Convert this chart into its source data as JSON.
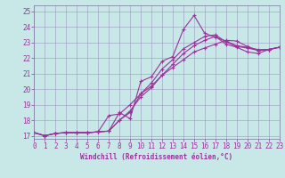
{
  "xlabel": "Windchill (Refroidissement éolien,°C)",
  "bg_color": "#c8e8e8",
  "grid_color": "#9999bb",
  "line_color": "#993399",
  "xlim": [
    0,
    23
  ],
  "ylim": [
    16.8,
    25.4
  ],
  "xticks": [
    0,
    1,
    2,
    3,
    4,
    5,
    6,
    7,
    8,
    9,
    10,
    11,
    12,
    13,
    14,
    15,
    16,
    17,
    18,
    19,
    20,
    21,
    22,
    23
  ],
  "yticks": [
    17,
    18,
    19,
    20,
    21,
    22,
    23,
    24,
    25
  ],
  "lines": [
    {
      "x": [
        0,
        1,
        2,
        3,
        4,
        5,
        6,
        7,
        8,
        9,
        10,
        11,
        12,
        13,
        14,
        15,
        16,
        17,
        18,
        19,
        20,
        21,
        22,
        23
      ],
      "y": [
        17.2,
        17.0,
        17.15,
        17.2,
        17.2,
        17.2,
        17.25,
        17.3,
        18.5,
        18.1,
        20.5,
        20.8,
        21.8,
        22.1,
        23.85,
        24.75,
        23.6,
        23.35,
        23.1,
        22.8,
        22.7,
        22.55,
        22.55,
        22.7
      ]
    },
    {
      "x": [
        0,
        1,
        2,
        3,
        4,
        5,
        6,
        7,
        8,
        9,
        10,
        11,
        12,
        13,
        14,
        15,
        16,
        17,
        18,
        19,
        20,
        21,
        22,
        23
      ],
      "y": [
        17.2,
        17.0,
        17.15,
        17.2,
        17.2,
        17.2,
        17.25,
        17.3,
        18.0,
        18.5,
        19.7,
        20.4,
        21.3,
        21.9,
        22.6,
        23.0,
        23.4,
        23.5,
        23.05,
        22.75,
        22.65,
        22.5,
        22.55,
        22.7
      ]
    },
    {
      "x": [
        0,
        1,
        2,
        3,
        4,
        5,
        6,
        7,
        8,
        9,
        10,
        11,
        12,
        13,
        14,
        15,
        16,
        17,
        18,
        19,
        20,
        21,
        22,
        23
      ],
      "y": [
        17.2,
        17.0,
        17.15,
        17.2,
        17.2,
        17.2,
        17.25,
        18.3,
        18.4,
        19.0,
        19.7,
        20.2,
        20.9,
        21.4,
        21.9,
        22.4,
        22.65,
        22.9,
        23.15,
        23.1,
        22.75,
        22.5,
        22.55,
        22.7
      ]
    },
    {
      "x": [
        0,
        1,
        2,
        3,
        4,
        5,
        6,
        7,
        8,
        9,
        10,
        11,
        12,
        13,
        14,
        15,
        16,
        17,
        18,
        19,
        20,
        21,
        22,
        23
      ],
      "y": [
        17.2,
        17.0,
        17.15,
        17.2,
        17.2,
        17.2,
        17.25,
        17.3,
        18.0,
        18.6,
        19.5,
        20.1,
        20.9,
        21.6,
        22.3,
        22.8,
        23.15,
        23.4,
        22.9,
        22.7,
        22.4,
        22.3,
        22.55,
        22.7
      ]
    }
  ],
  "marker": "+",
  "markersize": 3,
  "linewidth": 0.8,
  "tick_fontsize": 5.5,
  "xlabel_fontsize": 5.5
}
